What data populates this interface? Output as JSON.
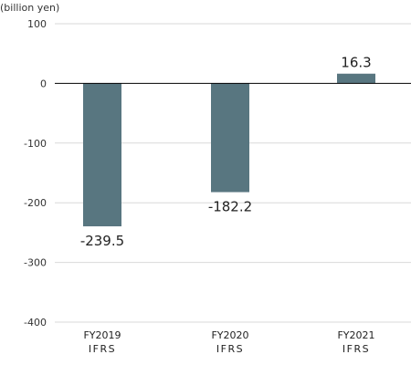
{
  "chart_data": {
    "type": "bar",
    "unit_label": "(billion yen)",
    "categories": [
      "FY2019",
      "FY2020",
      "FY2021"
    ],
    "category_sublabels": [
      "IFRS",
      "IFRS",
      "IFRS"
    ],
    "values": [
      -239.5,
      -182.2,
      16.3
    ],
    "value_labels": [
      "-239.5",
      "-182.2",
      "16.3"
    ],
    "y_ticks": [
      100,
      0,
      -100,
      -200,
      -300,
      -400
    ],
    "ylim": [
      -400,
      100
    ],
    "bar_color": "#587680",
    "grid": true,
    "grid_color": "#d9d9d9",
    "zero_line_color": "#000000",
    "legend": "none",
    "title": "",
    "xlabel": "",
    "ylabel": ""
  }
}
